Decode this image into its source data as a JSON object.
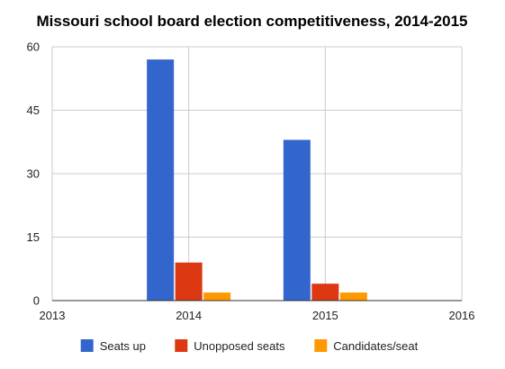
{
  "chart_data": {
    "type": "bar",
    "title": "Missouri school board election competitiveness, 2014-2015",
    "xlabel": "",
    "ylabel": "",
    "x": [
      2014,
      2015
    ],
    "xlim": [
      2013,
      2016
    ],
    "xticks": [
      "2013",
      "2014",
      "2015",
      "2016"
    ],
    "ylim": [
      0,
      60
    ],
    "yticks": [
      "0",
      "15",
      "30",
      "45",
      "60"
    ],
    "grid": true,
    "legend_position": "bottom",
    "series": [
      {
        "name": "Seats up",
        "color": "#3366cc",
        "values": [
          57,
          38
        ]
      },
      {
        "name": "Unopposed seats",
        "color": "#dc3912",
        "values": [
          9,
          4
        ]
      },
      {
        "name": "Candidates/seat",
        "color": "#ff9900",
        "values": [
          1.9,
          1.9
        ]
      }
    ]
  }
}
